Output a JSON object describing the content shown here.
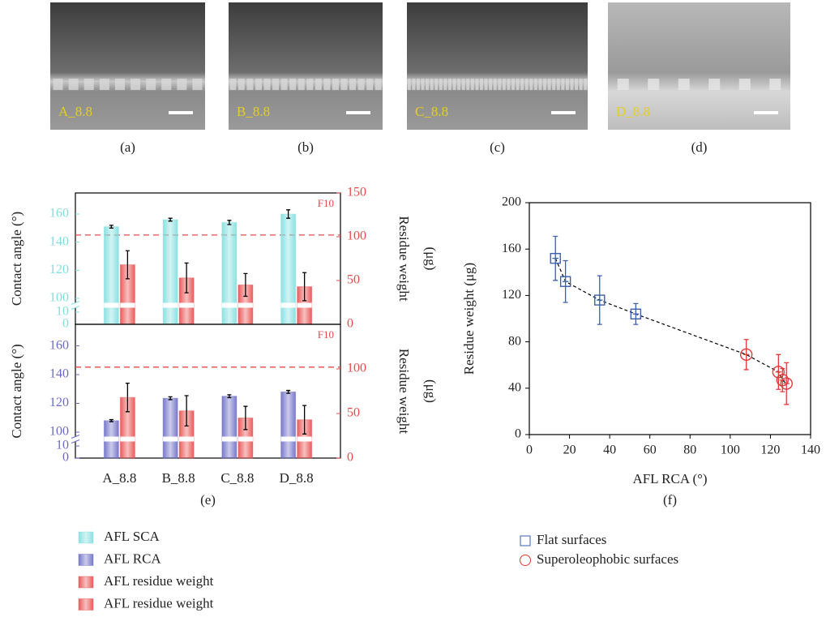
{
  "images": [
    {
      "label": "A_8.8",
      "caption": "(a)"
    },
    {
      "label": "B_8.8",
      "caption": "(b)"
    },
    {
      "label": "C_8.8",
      "caption": "(c)"
    },
    {
      "label": "D_8.8",
      "caption": "(d)"
    }
  ],
  "chart_data": [
    {
      "type": "bar",
      "ylabel": "Contact angle (°)",
      "y2label": [
        "Residue weight",
        "(μg)"
      ],
      "ylim": [
        0,
        175
      ],
      "ybreak": [
        10,
        100
      ],
      "yticks": [
        0,
        10,
        100,
        120,
        140,
        160
      ],
      "y2lim": [
        0,
        150
      ],
      "y2ticks": [
        0,
        50,
        100,
        150
      ],
      "threshold": {
        "value": 102,
        "label": "F10"
      },
      "series": [
        {
          "name": "AFL SCA",
          "color": "#7fdede",
          "values": [
            151,
            156,
            154,
            160
          ],
          "errors": [
            1,
            1,
            1.5,
            3
          ]
        },
        {
          "name": "AFL residue weight",
          "color": "#e84a4a",
          "axis": "y2",
          "values": [
            68,
            53,
            45,
            43
          ],
          "errors": [
            16,
            17,
            13,
            16
          ]
        }
      ]
    },
    {
      "type": "bar",
      "ylabel": "Contact angle (°)",
      "y2label": [
        "Residue weight",
        "(μg)"
      ],
      "categories": [
        "A_8.8",
        "B_8.8",
        "C_8.8",
        "D_8.8"
      ],
      "caption": "(e)",
      "ylim": [
        0,
        175
      ],
      "ybreak": [
        10,
        100
      ],
      "yticks": [
        0,
        10,
        100,
        120,
        140,
        160
      ],
      "y2lim": [
        0,
        150
      ],
      "y2ticks": [
        0,
        50,
        100
      ],
      "threshold": {
        "value": 102,
        "label": "F10"
      },
      "series": [
        {
          "name": "AFL RCA",
          "color": "#6a6ac6",
          "values": [
            108,
            123.6,
            125,
            128
          ],
          "errors": [
            0.7,
            1,
            1,
            1
          ]
        },
        {
          "name": "AFL residue weight",
          "color": "#e84a4a",
          "axis": "y2",
          "values": [
            68,
            53,
            45,
            43
          ],
          "errors": [
            16,
            17,
            13,
            16
          ]
        }
      ]
    },
    {
      "type": "scatter",
      "xlabel": "AFL RCA (°)",
      "ylabel": "Residue weight (μg)",
      "caption": "(f)",
      "xlim": [
        0,
        140
      ],
      "xticks": [
        0,
        20,
        40,
        60,
        80,
        100,
        120,
        140
      ],
      "ylim": [
        0,
        200
      ],
      "yticks": [
        0,
        40,
        80,
        120,
        160,
        200
      ],
      "series": [
        {
          "name": "Flat surfaces",
          "color": "#3a5fb0",
          "marker": "square",
          "x": [
            13,
            18,
            35,
            53
          ],
          "values": [
            152,
            132,
            116,
            104
          ],
          "xerr": [
            1.5,
            1.5,
            1.5,
            1.5
          ],
          "errors": [
            19,
            18,
            21,
            9
          ]
        },
        {
          "name": "Superoleophobic surfaces",
          "color": "#e03a3a",
          "marker": "circle",
          "x": [
            108,
            124,
            126,
            128
          ],
          "values": [
            69,
            54,
            47,
            44
          ],
          "xerr": [
            1.5,
            1.5,
            1.5,
            1.5
          ],
          "errors": [
            13,
            15,
            10,
            18
          ]
        }
      ]
    }
  ]
}
